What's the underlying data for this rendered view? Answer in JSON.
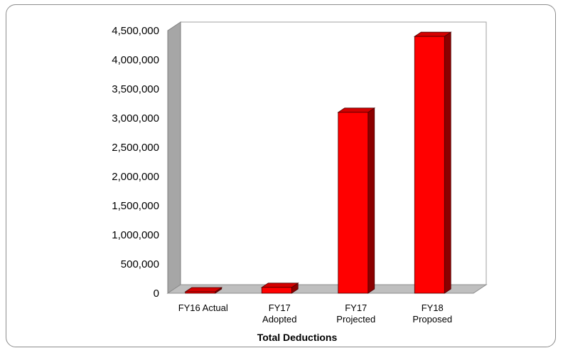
{
  "chart_data": {
    "type": "bar",
    "title": "Total Deductions",
    "xlabel": "",
    "ylabel": "",
    "categories": [
      [
        "FY16 Actual"
      ],
      [
        "FY17",
        "Adopted"
      ],
      [
        "FY17",
        "Projected"
      ],
      [
        "FY18",
        "Proposed"
      ]
    ],
    "values": [
      0,
      100000,
      3100000,
      4400000
    ],
    "ylim": [
      0,
      4500000
    ],
    "yticks": [
      0,
      500000,
      1000000,
      1500000,
      2000000,
      2500000,
      3000000,
      3500000,
      4000000,
      4500000
    ],
    "ytick_labels": [
      "0",
      "500,000",
      "1,000,000",
      "1,500,000",
      "2,000,000",
      "2,500,000",
      "3,000,000",
      "3,500,000",
      "4,000,000",
      "4,500,000"
    ],
    "grid": false,
    "legend": "none",
    "style": "3d",
    "colors": {
      "bar_front": "#ff0000",
      "bar_side": "#8b0000",
      "bar_top": "#d40000",
      "wall_left": "#a6a6a6",
      "floor": "#bfbfbf"
    }
  }
}
